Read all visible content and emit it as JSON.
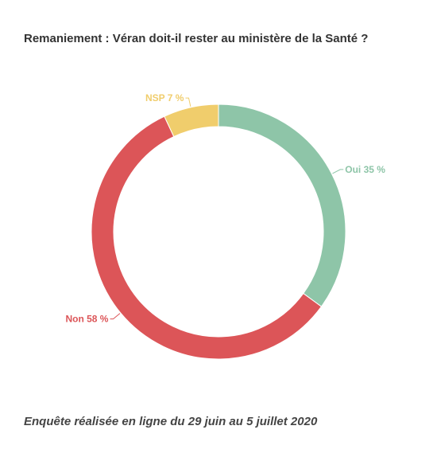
{
  "chart_data": {
    "type": "pie",
    "variant": "donut",
    "title": "Remaniement : Véran doit-il rester au ministère de la Santé ?",
    "caption": "Enquête réalisée en ligne du 29 juin au 5 juillet 2020",
    "unit": "%",
    "slices": [
      {
        "label": "Oui",
        "value": 35,
        "display": "Oui 35 %",
        "color": "#8ec5a8"
      },
      {
        "label": "Non",
        "value": 58,
        "display": "Non 58 %",
        "color": "#dc5558"
      },
      {
        "label": "NSP",
        "value": 7,
        "display": "NSP 7 %",
        "color": "#f0cd6c"
      }
    ],
    "legend": "none"
  }
}
